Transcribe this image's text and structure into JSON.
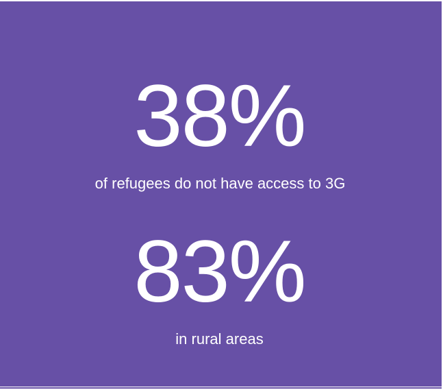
{
  "colors": {
    "background": "#6750a6",
    "text": "#ffffff"
  },
  "stats": [
    {
      "value": "38%",
      "caption": "of refugees do not have access to 3G"
    },
    {
      "value": "83%",
      "caption": "in rural areas"
    }
  ]
}
